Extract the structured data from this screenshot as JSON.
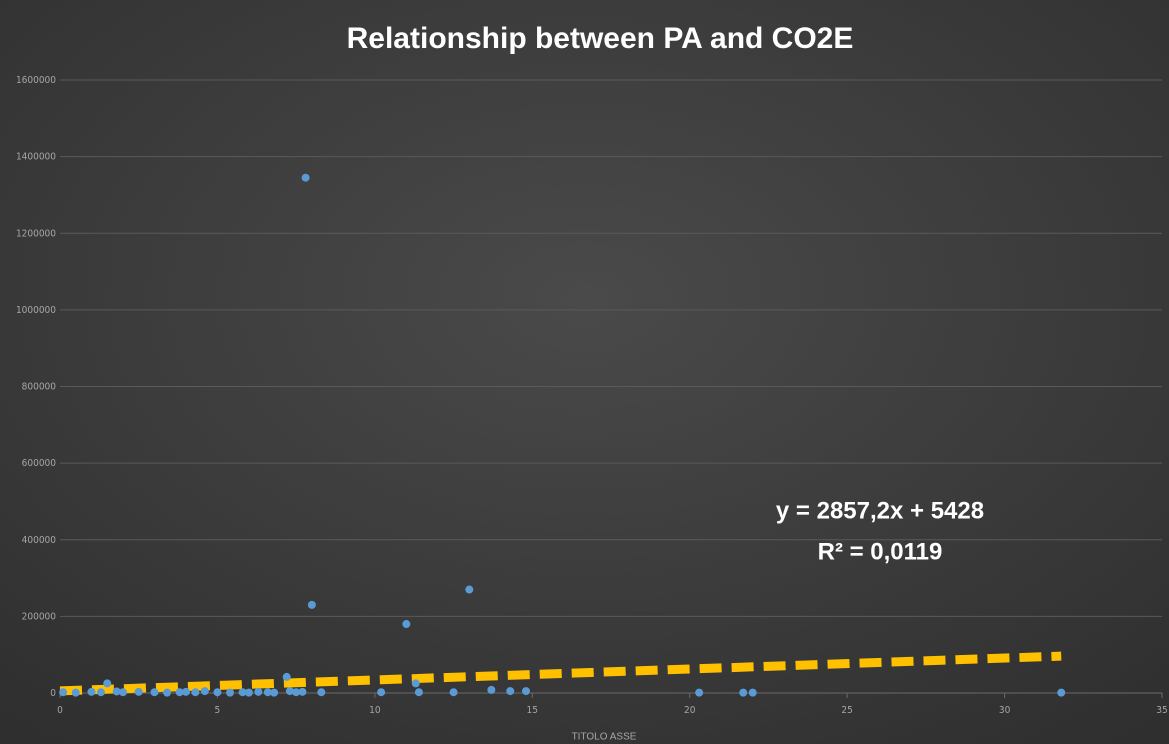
{
  "chart_data": {
    "type": "scatter",
    "title": "Relationship between PA and CO2E",
    "x_label": "TITOLO ASSE",
    "x": [
      0.1,
      0.5,
      1.0,
      1.3,
      1.5,
      1.8,
      2.0,
      2.5,
      3.0,
      3.4,
      3.8,
      4.0,
      4.3,
      4.6,
      5.0,
      5.4,
      5.8,
      6.0,
      6.3,
      6.6,
      6.8,
      7.2,
      7.3,
      7.5,
      7.7,
      7.8,
      8.0,
      8.3,
      10.2,
      11.0,
      11.3,
      11.4,
      12.5,
      13.0,
      13.7,
      14.3,
      14.8,
      20.3,
      21.7,
      22.0,
      31.8
    ],
    "values": [
      2000,
      1000,
      3000,
      2000,
      25000,
      4000,
      2000,
      3000,
      2000,
      1000,
      2000,
      3000,
      2000,
      5000,
      2000,
      1000,
      2000,
      1000,
      3000,
      2000,
      1000,
      42000,
      5000,
      2000,
      3000,
      1345000,
      230000,
      2000,
      2000,
      180000,
      25000,
      2000,
      2000,
      270000,
      8000,
      5000,
      5000,
      1000,
      1000,
      1000,
      1000
    ],
    "color": "#5b9bd5",
    "xlim": [
      0,
      35
    ],
    "xticks": [
      0,
      5,
      10,
      15,
      20,
      25,
      30,
      35
    ],
    "ylim": [
      0,
      1600000
    ],
    "yticks": [
      0,
      200000,
      400000,
      600000,
      800000,
      1000000,
      1200000,
      1400000,
      1600000
    ],
    "grid": true,
    "trendline": {
      "slope": 2857.2,
      "intercept": 5428,
      "color": "#ffc000",
      "equation_label": "y = 2857,2x + 5428",
      "r2_label": "R² = 0,0119"
    }
  }
}
